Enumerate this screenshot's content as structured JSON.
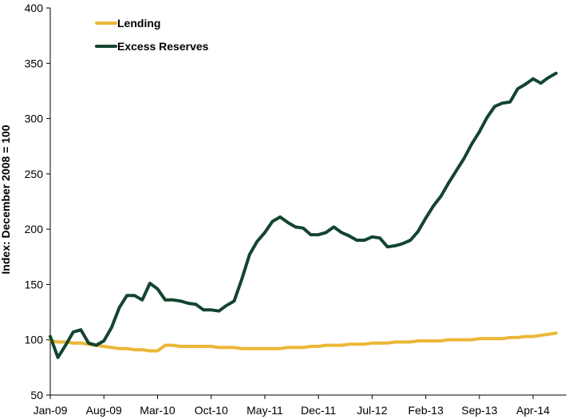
{
  "chart_data": {
    "type": "line",
    "title": "",
    "xlabel": "",
    "ylabel": "Index: December 2008 = 100",
    "ylim": [
      50,
      400
    ],
    "yticks": [
      50,
      100,
      150,
      200,
      250,
      300,
      350,
      400
    ],
    "xlim": [
      "2009-01",
      "2014-07"
    ],
    "xticks": [
      "Jan-09",
      "Aug-09",
      "Mar-10",
      "Oct-10",
      "May-11",
      "Dec-11",
      "Jul-12",
      "Feb-13",
      "Sep-13",
      "Apr-14"
    ],
    "grid": false,
    "legend_position": "top-left",
    "series": [
      {
        "name": "Lending",
        "color": "#EBB735",
        "points": [
          [
            "2009-01",
            99
          ],
          [
            "2009-02",
            98
          ],
          [
            "2009-03",
            98
          ],
          [
            "2009-04",
            97
          ],
          [
            "2009-05",
            97
          ],
          [
            "2009-06",
            96
          ],
          [
            "2009-07",
            95
          ],
          [
            "2009-08",
            94
          ],
          [
            "2009-09",
            93
          ],
          [
            "2009-10",
            92
          ],
          [
            "2009-11",
            92
          ],
          [
            "2009-12",
            91
          ],
          [
            "2010-01",
            91
          ],
          [
            "2010-02",
            90
          ],
          [
            "2010-03",
            90
          ],
          [
            "2010-04",
            95
          ],
          [
            "2010-05",
            95
          ],
          [
            "2010-06",
            94
          ],
          [
            "2010-07",
            94
          ],
          [
            "2010-08",
            94
          ],
          [
            "2010-09",
            94
          ],
          [
            "2010-10",
            94
          ],
          [
            "2010-11",
            93
          ],
          [
            "2010-12",
            93
          ],
          [
            "2011-01",
            93
          ],
          [
            "2011-02",
            92
          ],
          [
            "2011-03",
            92
          ],
          [
            "2011-04",
            92
          ],
          [
            "2011-05",
            92
          ],
          [
            "2011-06",
            92
          ],
          [
            "2011-07",
            92
          ],
          [
            "2011-08",
            93
          ],
          [
            "2011-09",
            93
          ],
          [
            "2011-10",
            93
          ],
          [
            "2011-11",
            94
          ],
          [
            "2011-12",
            94
          ],
          [
            "2012-01",
            95
          ],
          [
            "2012-02",
            95
          ],
          [
            "2012-03",
            95
          ],
          [
            "2012-04",
            96
          ],
          [
            "2012-05",
            96
          ],
          [
            "2012-06",
            96
          ],
          [
            "2012-07",
            97
          ],
          [
            "2012-08",
            97
          ],
          [
            "2012-09",
            97
          ],
          [
            "2012-10",
            98
          ],
          [
            "2012-11",
            98
          ],
          [
            "2012-12",
            98
          ],
          [
            "2013-01",
            99
          ],
          [
            "2013-02",
            99
          ],
          [
            "2013-03",
            99
          ],
          [
            "2013-04",
            99
          ],
          [
            "2013-05",
            100
          ],
          [
            "2013-06",
            100
          ],
          [
            "2013-07",
            100
          ],
          [
            "2013-08",
            100
          ],
          [
            "2013-09",
            101
          ],
          [
            "2013-10",
            101
          ],
          [
            "2013-11",
            101
          ],
          [
            "2013-12",
            101
          ],
          [
            "2014-01",
            102
          ],
          [
            "2014-02",
            102
          ],
          [
            "2014-03",
            103
          ],
          [
            "2014-04",
            103
          ],
          [
            "2014-05",
            104
          ],
          [
            "2014-06",
            105
          ],
          [
            "2014-07",
            106
          ]
        ]
      },
      {
        "name": "Excess Reserves",
        "color": "#13452F",
        "points": [
          [
            "2009-01",
            103
          ],
          [
            "2009-02",
            84
          ],
          [
            "2009-03",
            95
          ],
          [
            "2009-04",
            107
          ],
          [
            "2009-05",
            109
          ],
          [
            "2009-06",
            97
          ],
          [
            "2009-07",
            95
          ],
          [
            "2009-08",
            99
          ],
          [
            "2009-09",
            111
          ],
          [
            "2009-10",
            129
          ],
          [
            "2009-11",
            140
          ],
          [
            "2009-12",
            140
          ],
          [
            "2010-01",
            136
          ],
          [
            "2010-02",
            151
          ],
          [
            "2010-03",
            146
          ],
          [
            "2010-04",
            136
          ],
          [
            "2010-05",
            136
          ],
          [
            "2010-06",
            135
          ],
          [
            "2010-07",
            133
          ],
          [
            "2010-08",
            132
          ],
          [
            "2010-09",
            127
          ],
          [
            "2010-10",
            127
          ],
          [
            "2010-11",
            126
          ],
          [
            "2010-12",
            131
          ],
          [
            "2011-01",
            135
          ],
          [
            "2011-02",
            155
          ],
          [
            "2011-03",
            177
          ],
          [
            "2011-04",
            189
          ],
          [
            "2011-05",
            197
          ],
          [
            "2011-06",
            207
          ],
          [
            "2011-07",
            211
          ],
          [
            "2011-08",
            206
          ],
          [
            "2011-09",
            202
          ],
          [
            "2011-10",
            201
          ],
          [
            "2011-11",
            195
          ],
          [
            "2011-12",
            195
          ],
          [
            "2012-01",
            197
          ],
          [
            "2012-02",
            202
          ],
          [
            "2012-03",
            197
          ],
          [
            "2012-04",
            194
          ],
          [
            "2012-05",
            190
          ],
          [
            "2012-06",
            190
          ],
          [
            "2012-07",
            193
          ],
          [
            "2012-08",
            192
          ],
          [
            "2012-09",
            184
          ],
          [
            "2012-10",
            185
          ],
          [
            "2012-11",
            187
          ],
          [
            "2012-12",
            190
          ],
          [
            "2013-01",
            198
          ],
          [
            "2013-02",
            210
          ],
          [
            "2013-03",
            221
          ],
          [
            "2013-04",
            230
          ],
          [
            "2013-05",
            242
          ],
          [
            "2013-06",
            253
          ],
          [
            "2013-07",
            264
          ],
          [
            "2013-08",
            277
          ],
          [
            "2013-09",
            288
          ],
          [
            "2013-10",
            301
          ],
          [
            "2013-11",
            311
          ],
          [
            "2013-12",
            314
          ],
          [
            "2014-01",
            315
          ],
          [
            "2014-02",
            327
          ],
          [
            "2014-03",
            331
          ],
          [
            "2014-04",
            336
          ],
          [
            "2014-05",
            332
          ],
          [
            "2014-06",
            337
          ],
          [
            "2014-07",
            341
          ]
        ]
      }
    ]
  }
}
